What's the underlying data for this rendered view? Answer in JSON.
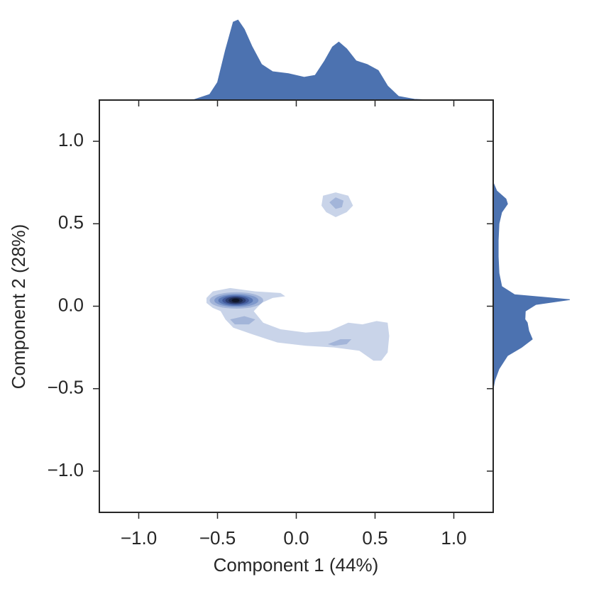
{
  "chart_data": {
    "type": "kde_joint",
    "x_label": "Component 1 (44%)",
    "y_label": "Component 2 (28%)",
    "xlim": [
      -1.25,
      1.25
    ],
    "ylim": [
      -1.25,
      1.25
    ],
    "xticks": [
      {
        "value": -1,
        "label": "−1.0"
      },
      {
        "value": -0.5,
        "label": "−0.5"
      },
      {
        "value": 0,
        "label": "0.0"
      },
      {
        "value": 0.5,
        "label": "0.5"
      },
      {
        "value": 1,
        "label": "1.0"
      }
    ],
    "yticks": [
      {
        "value": -1,
        "label": "−1.0"
      },
      {
        "value": -0.5,
        "label": "−0.5"
      },
      {
        "value": 0,
        "label": "0.0"
      },
      {
        "value": 0.5,
        "label": "0.5"
      },
      {
        "value": 1,
        "label": "1.0"
      }
    ],
    "x_marginal": {
      "color": "#4c72b0",
      "density_lim": [
        0,
        2.2
      ],
      "x": [
        -0.75,
        -0.65,
        -0.55,
        -0.5,
        -0.45,
        -0.4,
        -0.37,
        -0.33,
        -0.28,
        -0.22,
        -0.15,
        -0.05,
        0.05,
        0.12,
        0.18,
        0.23,
        0.27,
        0.32,
        0.38,
        0.45,
        0.52,
        0.58,
        0.65,
        0.75,
        0.85
      ],
      "density": [
        0,
        0.01,
        0.14,
        0.44,
        1.24,
        1.95,
        2.0,
        1.77,
        1.33,
        0.89,
        0.71,
        0.66,
        0.57,
        0.62,
        0.98,
        1.33,
        1.45,
        1.28,
        0.98,
        0.89,
        0.74,
        0.35,
        0.09,
        0.02,
        0
      ]
    },
    "y_marginal": {
      "color": "#4c72b0",
      "density_lim": [
        0,
        2.2
      ],
      "y": [
        0.75,
        0.7,
        0.65,
        0.62,
        0.57,
        0.5,
        0.4,
        0.3,
        0.2,
        0.12,
        0.07,
        0.04,
        0.01,
        -0.03,
        -0.08,
        -0.1,
        -0.15,
        -0.2,
        -0.25,
        -0.3,
        -0.38,
        -0.45,
        -0.5
      ],
      "density": [
        0,
        0.09,
        0.33,
        0.37,
        0.22,
        0.15,
        0.13,
        0.13,
        0.15,
        0.22,
        0.55,
        1.98,
        1.1,
        0.83,
        0.82,
        0.88,
        0.92,
        1.01,
        0.73,
        0.37,
        0.15,
        0.04,
        0
      ]
    },
    "contours": [
      {
        "color": "#c9d4e9",
        "x": [
          -0.57,
          -0.53,
          -0.42,
          -0.26,
          -0.1,
          -0.07,
          -0.15,
          -0.22,
          -0.27,
          -0.21,
          -0.1,
          0.06,
          0.21,
          0.33,
          0.42,
          0.51,
          0.58,
          0.59,
          0.58,
          0.54,
          0.49,
          0.4,
          0.24,
          0.06,
          -0.12,
          -0.28,
          -0.4,
          -0.45,
          -0.48,
          -0.53,
          -0.57
        ],
        "y": [
          0.05,
          0.09,
          0.11,
          0.09,
          0.08,
          0.06,
          0.05,
          0.02,
          -0.03,
          -0.1,
          -0.14,
          -0.16,
          -0.15,
          -0.1,
          -0.11,
          -0.09,
          -0.1,
          -0.18,
          -0.28,
          -0.33,
          -0.33,
          -0.27,
          -0.25,
          -0.24,
          -0.22,
          -0.17,
          -0.13,
          -0.08,
          -0.03,
          -0.01,
          0.02
        ]
      },
      {
        "color": "#c9d4e9",
        "x": [
          0.16,
          0.17,
          0.25,
          0.33,
          0.36,
          0.32,
          0.25,
          0.19
        ],
        "y": [
          0.61,
          0.67,
          0.69,
          0.67,
          0.61,
          0.57,
          0.54,
          0.57
        ]
      },
      {
        "color": "#a3b5d9",
        "x": [
          0.21,
          0.25,
          0.3,
          0.29,
          0.25
        ],
        "y": [
          0.63,
          0.66,
          0.64,
          0.6,
          0.59
        ]
      },
      {
        "color": "#a3b5d9",
        "x": [
          0.2,
          0.28,
          0.35,
          0.32,
          0.24
        ],
        "y": [
          -0.23,
          -0.2,
          -0.2,
          -0.23,
          -0.24
        ]
      },
      {
        "color": "#a3b5d9",
        "x": [
          -0.42,
          -0.33,
          -0.26,
          -0.3,
          -0.39
        ],
        "y": [
          -0.08,
          -0.06,
          -0.08,
          -0.11,
          -0.11
        ]
      }
    ],
    "peak_levels": [
      {
        "color": "#a3b5d9",
        "center": [
          -0.38,
          0.035
        ],
        "radius": [
          0.17,
          0.05
        ]
      },
      {
        "color": "#7e98cb",
        "center": [
          -0.38,
          0.035
        ],
        "radius": [
          0.14,
          0.04
        ]
      },
      {
        "color": "#5a78b5",
        "center": [
          -0.385,
          0.035
        ],
        "radius": [
          0.11,
          0.033
        ]
      },
      {
        "color": "#41599a",
        "center": [
          -0.385,
          0.035
        ],
        "radius": [
          0.085,
          0.027
        ]
      },
      {
        "color": "#2d3f72",
        "center": [
          -0.385,
          0.035
        ],
        "radius": [
          0.065,
          0.022
        ]
      },
      {
        "color": "#1d294d",
        "center": [
          -0.385,
          0.035
        ],
        "radius": [
          0.045,
          0.017
        ]
      },
      {
        "color": "#0f1528",
        "center": [
          -0.385,
          0.035
        ],
        "radius": [
          0.025,
          0.011
        ]
      }
    ]
  }
}
